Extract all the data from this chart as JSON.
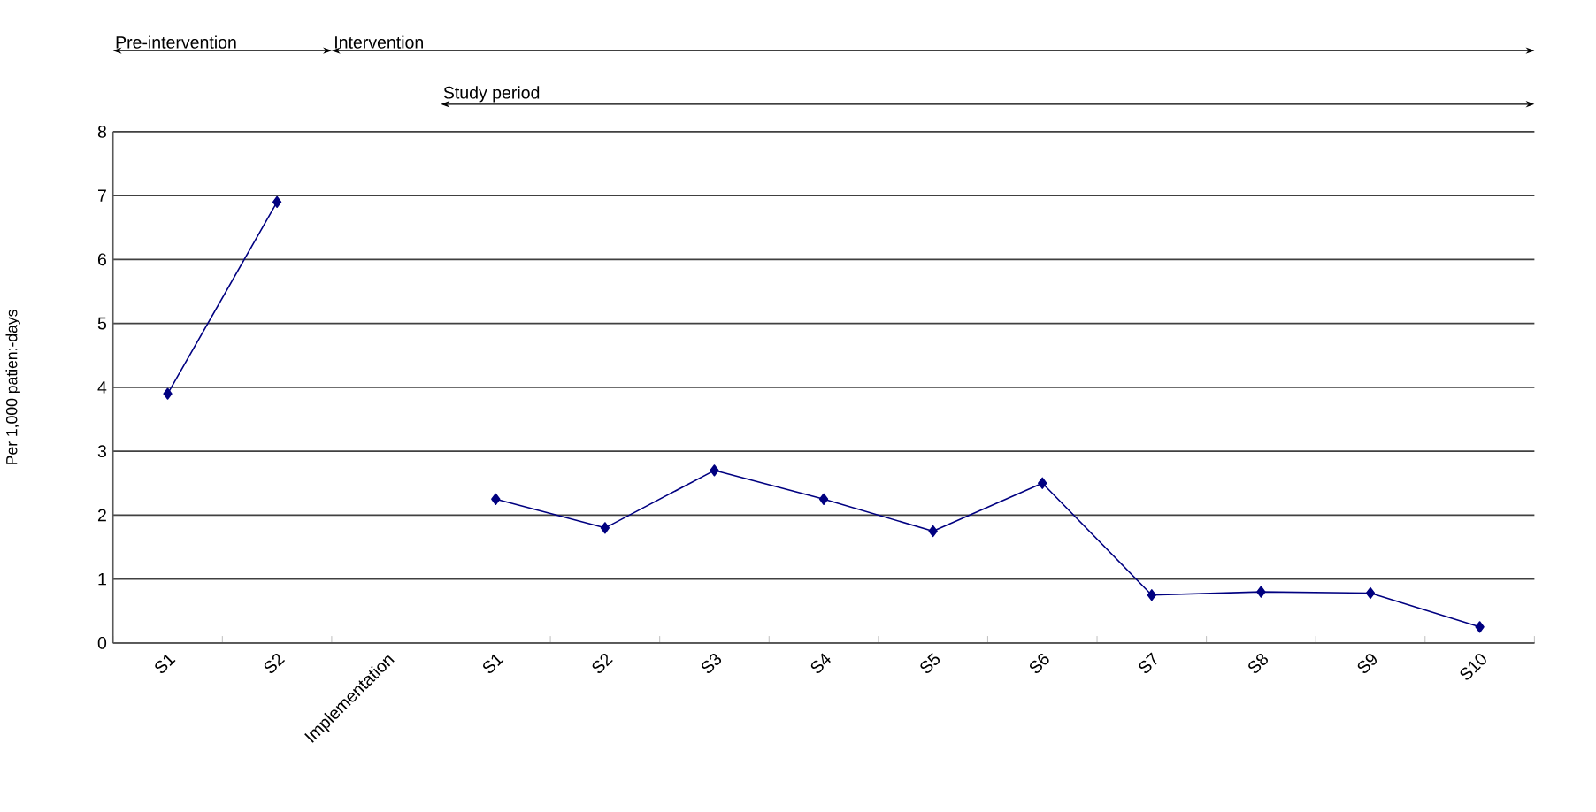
{
  "chart_data": {
    "type": "line",
    "ylabel": "Per 1,000 patien:-days",
    "categories": [
      "S1",
      "S2",
      "Implementation",
      "S1",
      "S2",
      "S3",
      "S4",
      "S5",
      "S6",
      "S7",
      "S8",
      "S9",
      "S10"
    ],
    "series": [
      {
        "color": "#000080",
        "values": [
          3.9,
          6.9,
          null,
          2.25,
          1.8,
          2.7,
          2.25,
          1.75,
          2.5,
          0.75,
          0.8,
          0.78,
          0.25
        ]
      }
    ],
    "ylim": [
      0,
      8
    ],
    "yticks": [
      0,
      1,
      2,
      3,
      4,
      5,
      6,
      7,
      8
    ],
    "grid": "y",
    "marker": "diamond",
    "line_style": "solid",
    "annotations": [
      "Pre-intervention",
      "Intervention",
      "Study period"
    ]
  }
}
